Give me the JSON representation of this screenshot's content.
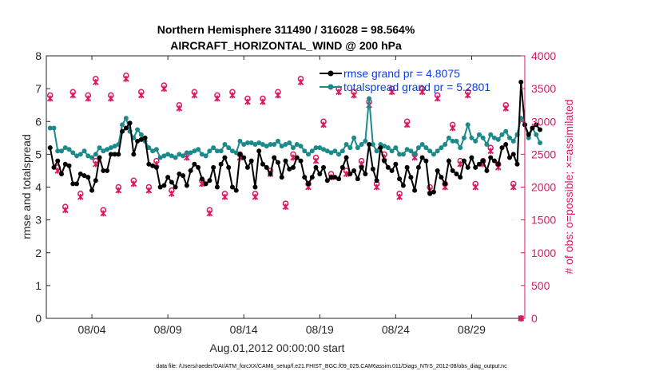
{
  "chart_data": {
    "type": "line",
    "title_line1": "Northern Hemisphere 311490 / 316028 = 98.564%",
    "title_line2": "AIRCRAFT_HORIZONTAL_WIND @ 200 hPa",
    "xlabel": "Aug.01,2012 00:00:00 start",
    "ylabel_left": "rmse and totalspread",
    "ylabel_right": "# of obs: o=possible; ×=assimilated",
    "footer": "data file: /Users/raeder/DAI/ATM_forcXX/CAM6_setup/f.e21.FHIST_BGC.f09_025.CAM6assim.011/Diags_NTrS_2012-08/obs_diag_output.nc",
    "xlim": [
      1,
      32.5
    ],
    "ylim_left": [
      0,
      8
    ],
    "ylim_right": [
      0,
      4000
    ],
    "x_ticks": [
      {
        "value": 4,
        "label": "08/04"
      },
      {
        "value": 9,
        "label": "08/09"
      },
      {
        "value": 14,
        "label": "08/14"
      },
      {
        "value": 19,
        "label": "08/19"
      },
      {
        "value": 24,
        "label": "08/24"
      },
      {
        "value": 29,
        "label": "08/29"
      }
    ],
    "y_ticks_left": [
      0,
      1,
      2,
      3,
      4,
      5,
      6,
      7,
      8
    ],
    "y_ticks_right": [
      0,
      500,
      1000,
      1500,
      2000,
      2500,
      3000,
      3500,
      4000
    ],
    "grid": false,
    "legend_position": "top-right",
    "colors": {
      "rmse": "#000000",
      "totalspread": "#1b8a8a",
      "obs": "#d81b60",
      "legend_text": "#0b3ee0"
    },
    "series": [
      {
        "name": "rmse grand pr = 4.8075",
        "axis": "left",
        "x_start": 1.25,
        "x_step": 0.25,
        "values": [
          5.2,
          4.6,
          4.8,
          4.4,
          4.7,
          4.65,
          4.1,
          4.1,
          4.4,
          4.35,
          4.3,
          3.9,
          4.2,
          4.9,
          4.5,
          4.5,
          5.0,
          5.0,
          5.0,
          5.7,
          5.8,
          5.95,
          5.0,
          5.4,
          5.45,
          5.5,
          4.7,
          4.65,
          4.6,
          4.0,
          4.05,
          4.3,
          4.15,
          4.0,
          4.4,
          4.35,
          4.05,
          4.5,
          4.7,
          4.6,
          4.25,
          4.1,
          4.2,
          4.6,
          4.0,
          4.7,
          4.9,
          4.6,
          4.0,
          3.9,
          5.0,
          4.9,
          4.6,
          4.8,
          4.0,
          5.1,
          4.7,
          4.6,
          4.4,
          4.9,
          4.75,
          4.3,
          4.8,
          4.55,
          4.6,
          4.9,
          4.8,
          4.3,
          4.1,
          4.3,
          4.6,
          4.4,
          4.6,
          4.2,
          4.3,
          4.3,
          4.25,
          4.6,
          4.9,
          4.4,
          4.5,
          4.25,
          4.6,
          4.4,
          5.3,
          4.55,
          4.2,
          5.2,
          4.8,
          4.6,
          4.5,
          4.7,
          4.25,
          4.05,
          4.6,
          4.3,
          3.9,
          4.6,
          4.9,
          4.8,
          3.8,
          3.85,
          4.5,
          4.3,
          4.1,
          4.8,
          4.5,
          4.4,
          4.3,
          4.8,
          4.6,
          4.9,
          4.6,
          4.7,
          4.8,
          4.5,
          4.9,
          4.8,
          4.7,
          5.2,
          5.3,
          4.9,
          5.0,
          4.7,
          7.2,
          5.9,
          5.6,
          5.8,
          5.9,
          5.75
        ]
      },
      {
        "name": "totalspread grand pr = 5.2801",
        "axis": "left",
        "x_start": 1.25,
        "x_step": 0.25,
        "values": [
          5.8,
          5.8,
          5.1,
          5.1,
          5.2,
          5.15,
          5.05,
          4.95,
          5.0,
          5.1,
          4.95,
          4.9,
          5.0,
          5.2,
          5.1,
          5.15,
          5.2,
          5.25,
          5.3,
          5.9,
          6.1,
          5.7,
          5.5,
          5.75,
          5.6,
          5.4,
          5.2,
          5.1,
          5.15,
          4.9,
          4.95,
          5.0,
          4.95,
          4.9,
          5.0,
          4.95,
          5.05,
          5.05,
          5.1,
          5.15,
          5.0,
          4.95,
          5.1,
          5.2,
          5.1,
          5.1,
          5.3,
          5.2,
          5.1,
          5.05,
          5.4,
          5.3,
          5.35,
          5.35,
          5.3,
          5.35,
          5.3,
          5.25,
          5.3,
          5.3,
          5.4,
          5.25,
          5.3,
          5.35,
          5.2,
          5.3,
          5.25,
          5.1,
          5.0,
          5.1,
          5.2,
          5.2,
          5.15,
          5.1,
          5.05,
          5.1,
          5.0,
          5.1,
          5.3,
          5.2,
          5.5,
          5.2,
          5.3,
          5.4,
          6.7,
          5.3,
          5.1,
          5.3,
          5.25,
          5.2,
          5.1,
          5.2,
          5.0,
          5.0,
          5.15,
          5.1,
          5.0,
          5.2,
          5.3,
          5.2,
          5.1,
          5.0,
          5.1,
          5.2,
          5.3,
          5.5,
          5.4,
          5.4,
          5.2,
          5.5,
          5.9,
          5.5,
          5.4,
          5.6,
          5.5,
          5.3,
          5.6,
          5.5,
          5.45,
          5.6,
          5.7,
          5.5,
          5.4,
          5.6,
          6.1,
          5.9,
          5.5,
          5.8,
          5.6,
          5.35
        ]
      },
      {
        "name": "possible obs",
        "axis": "right",
        "marker": "circle",
        "points": [
          [
            1.25,
            3400
          ],
          [
            1.75,
            2300
          ],
          [
            2.25,
            1700
          ],
          [
            2.75,
            3450
          ],
          [
            3.25,
            1900
          ],
          [
            3.75,
            3400
          ],
          [
            4.25,
            2400
          ],
          [
            4.25,
            3650
          ],
          [
            4.75,
            1650
          ],
          [
            5.25,
            3400
          ],
          [
            5.75,
            2000
          ],
          [
            6.25,
            3700
          ],
          [
            6.75,
            2100
          ],
          [
            7.25,
            3450
          ],
          [
            7.75,
            2000
          ],
          [
            8.25,
            2400
          ],
          [
            8.75,
            3550
          ],
          [
            9.25,
            1950
          ],
          [
            9.75,
            3250
          ],
          [
            10.25,
            2500
          ],
          [
            10.75,
            3450
          ],
          [
            11.25,
            2100
          ],
          [
            11.75,
            1650
          ],
          [
            12.25,
            3400
          ],
          [
            12.75,
            1900
          ],
          [
            13.25,
            3450
          ],
          [
            13.75,
            2500
          ],
          [
            14.25,
            3350
          ],
          [
            14.75,
            1900
          ],
          [
            15.25,
            3350
          ],
          [
            15.75,
            2250
          ],
          [
            16.25,
            3450
          ],
          [
            16.75,
            1750
          ],
          [
            17.25,
            2500
          ],
          [
            17.75,
            3650
          ],
          [
            18.25,
            2050
          ],
          [
            18.75,
            2450
          ],
          [
            19.25,
            3000
          ],
          [
            19.75,
            2200
          ],
          [
            20.25,
            3500
          ],
          [
            20.75,
            2250
          ],
          [
            21.25,
            3450
          ],
          [
            21.75,
            2400
          ],
          [
            22.25,
            3300
          ],
          [
            22.75,
            2050
          ],
          [
            23.25,
            2500
          ],
          [
            23.75,
            3500
          ],
          [
            24.25,
            1900
          ],
          [
            24.75,
            3000
          ],
          [
            25.25,
            2500
          ],
          [
            25.75,
            3500
          ],
          [
            26.25,
            2000
          ],
          [
            26.75,
            3400
          ],
          [
            27.25,
            2050
          ],
          [
            27.75,
            2950
          ],
          [
            28.25,
            2400
          ],
          [
            28.75,
            3450
          ],
          [
            29.25,
            2050
          ],
          [
            29.75,
            2400
          ],
          [
            30.25,
            2600
          ],
          [
            30.75,
            2350
          ],
          [
            31.25,
            3250
          ],
          [
            31.75,
            2050
          ],
          [
            32.25,
            0
          ]
        ]
      },
      {
        "name": "assimilated obs",
        "axis": "right",
        "marker": "x",
        "points": [
          [
            1.25,
            3350
          ],
          [
            1.75,
            2250
          ],
          [
            2.25,
            1650
          ],
          [
            2.75,
            3400
          ],
          [
            3.25,
            1850
          ],
          [
            3.75,
            3350
          ],
          [
            4.25,
            2350
          ],
          [
            4.25,
            3600
          ],
          [
            4.75,
            1600
          ],
          [
            5.25,
            3350
          ],
          [
            5.75,
            1950
          ],
          [
            6.25,
            3650
          ],
          [
            6.75,
            2050
          ],
          [
            7.25,
            3400
          ],
          [
            7.75,
            1950
          ],
          [
            8.25,
            2350
          ],
          [
            8.75,
            3500
          ],
          [
            9.25,
            1900
          ],
          [
            9.75,
            3200
          ],
          [
            10.25,
            2450
          ],
          [
            10.75,
            3400
          ],
          [
            11.25,
            2050
          ],
          [
            11.75,
            1600
          ],
          [
            12.25,
            3350
          ],
          [
            12.75,
            1850
          ],
          [
            13.25,
            3400
          ],
          [
            13.75,
            2450
          ],
          [
            14.25,
            3300
          ],
          [
            14.75,
            1850
          ],
          [
            15.25,
            3300
          ],
          [
            15.75,
            2200
          ],
          [
            16.25,
            3400
          ],
          [
            16.75,
            1700
          ],
          [
            17.25,
            2450
          ],
          [
            17.75,
            3600
          ],
          [
            18.25,
            2000
          ],
          [
            18.75,
            2400
          ],
          [
            19.25,
            2950
          ],
          [
            19.75,
            2150
          ],
          [
            20.25,
            3450
          ],
          [
            20.75,
            2200
          ],
          [
            21.25,
            3400
          ],
          [
            21.75,
            2350
          ],
          [
            22.25,
            3250
          ],
          [
            22.75,
            2000
          ],
          [
            23.25,
            2450
          ],
          [
            23.75,
            3450
          ],
          [
            24.25,
            1850
          ],
          [
            24.75,
            2950
          ],
          [
            25.25,
            2450
          ],
          [
            25.75,
            3450
          ],
          [
            26.25,
            1950
          ],
          [
            26.75,
            3350
          ],
          [
            27.25,
            2000
          ],
          [
            27.75,
            2900
          ],
          [
            28.25,
            2350
          ],
          [
            28.75,
            3400
          ],
          [
            29.25,
            2000
          ],
          [
            29.75,
            2350
          ],
          [
            30.25,
            2550
          ],
          [
            30.75,
            2300
          ],
          [
            31.25,
            3200
          ],
          [
            31.75,
            2000
          ],
          [
            32.25,
            0
          ]
        ]
      }
    ]
  }
}
